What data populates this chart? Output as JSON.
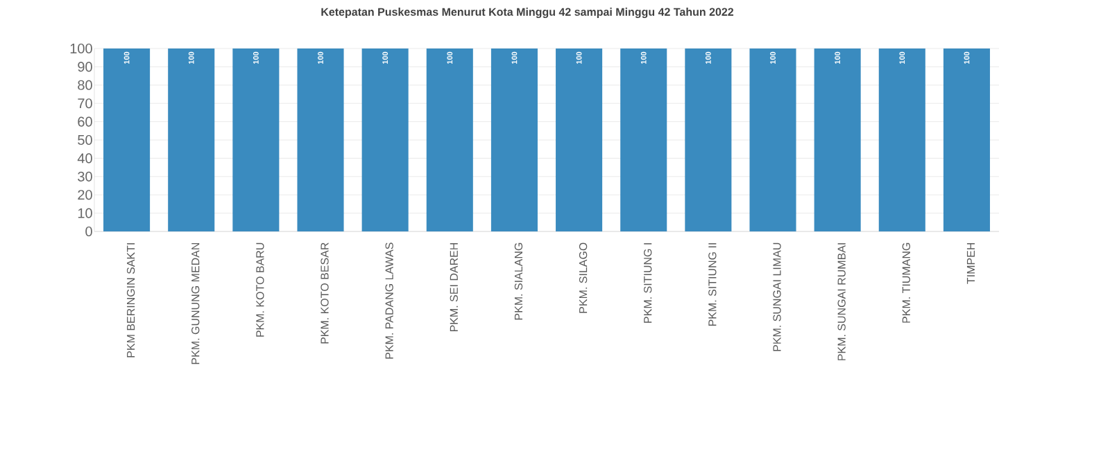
{
  "chart_data": {
    "type": "bar",
    "title": "Ketepatan Puskesmas  Menurut Kota  Minggu 42 sampai Minggu 42 Tahun 2022",
    "categories": [
      "PKM BERINGIN SAKTI",
      "PKM. GUNUNG MEDAN",
      "PKM. KOTO BARU",
      "PKM. KOTO BESAR",
      "PKM. PADANG LAWAS",
      "PKM. SEI DAREH",
      "PKM. SIALANG",
      "PKM. SILAGO",
      "PKM. SITIUNG I",
      "PKM. SITIUNG II",
      "PKM. SUNGAI LIMAU",
      "PKM. SUNGAI RUMBAI",
      "PKM. TIUMANG",
      "TIMPEH"
    ],
    "values": [
      100,
      100,
      100,
      100,
      100,
      100,
      100,
      100,
      100,
      100,
      100,
      100,
      100,
      100
    ],
    "color": "#3a8bbf",
    "ylim": [
      0,
      100
    ],
    "yticks": [
      0,
      10,
      20,
      30,
      40,
      50,
      60,
      70,
      80,
      90,
      100
    ],
    "grid": "y",
    "data_labels": true
  }
}
